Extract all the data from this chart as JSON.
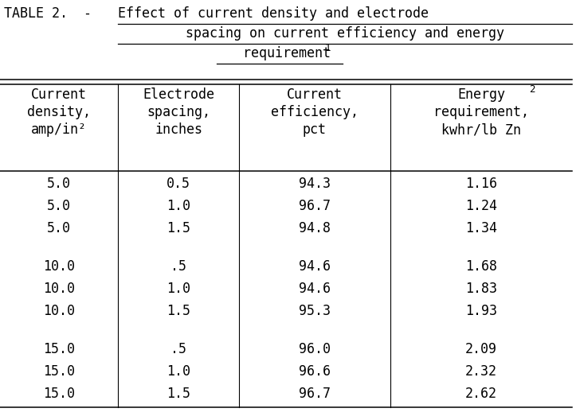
{
  "title_prefix": "TABLE 2.  -",
  "title_line1": "Effect of current density and electrode",
  "title_line2": "spacing on current efficiency and energy",
  "title_line3": "requirement",
  "title_sup": "1",
  "col_headers": [
    [
      "Current",
      "density,",
      "amp/in²"
    ],
    [
      "Electrode",
      "spacing,",
      "inches"
    ],
    [
      "Current",
      "efficiency,",
      "pct"
    ],
    [
      "Energy",
      "requirement,",
      "kwhr/lb Zn"
    ]
  ],
  "col4_sup": "2",
  "rows": [
    [
      "5.0",
      "0.5",
      "94.3",
      "1.16"
    ],
    [
      "5.0",
      "1.0",
      "96.7",
      "1.24"
    ],
    [
      "5.0",
      "1.5",
      "94.8",
      "1.34"
    ],
    [
      "10.0",
      ".5",
      "94.6",
      "1.68"
    ],
    [
      "10.0",
      "1.0",
      "94.6",
      "1.83"
    ],
    [
      "10.0",
      "1.5",
      "95.3",
      "1.93"
    ],
    [
      "15.0",
      ".5",
      "96.0",
      "2.09"
    ],
    [
      "15.0",
      "1.0",
      "96.6",
      "2.32"
    ],
    [
      "15.0",
      "1.5",
      "96.7",
      "2.62"
    ]
  ],
  "group_breaks": [
    3,
    6
  ],
  "bg_color": "#ffffff",
  "text_color": "#000000",
  "font_size": 12,
  "sup_font_size": 9
}
